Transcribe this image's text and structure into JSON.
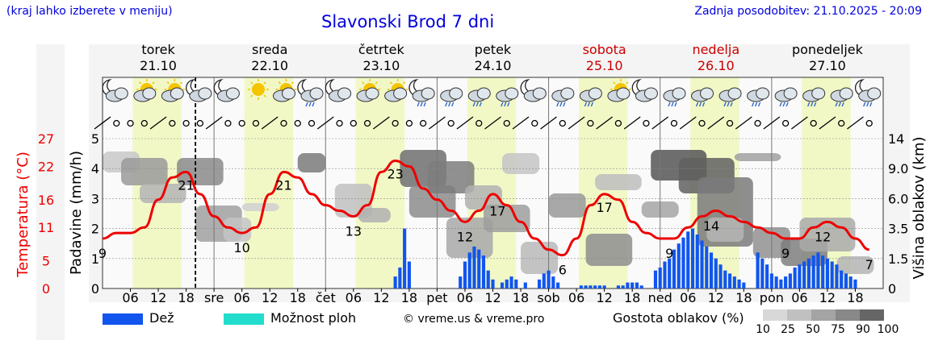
{
  "header": {
    "note": "(kraj lahko izberete v meniju)",
    "title": "Slavonski Brod 7 dni",
    "updated": "Zadnja posodobitev: 21.10.2025 - 20:09"
  },
  "days": [
    {
      "name": "torek",
      "date": "21.10",
      "weekend": false
    },
    {
      "name": "sreda",
      "date": "22.10",
      "weekend": false
    },
    {
      "name": "četrtek",
      "date": "23.10",
      "weekend": false
    },
    {
      "name": "petek",
      "date": "24.10",
      "weekend": false
    },
    {
      "name": "sobota",
      "date": "25.10",
      "weekend": true
    },
    {
      "name": "nedelja",
      "date": "26.10",
      "weekend": true
    },
    {
      "name": "ponedeljek",
      "date": "27.10",
      "weekend": false
    }
  ],
  "axes": {
    "left_temp_label": "Temperatura (°C)",
    "left_temp_ticks": [
      "27",
      "22",
      "16",
      "11",
      "5",
      "0"
    ],
    "left_precip_label": "Padavine (mm/h)",
    "left_precip_ticks": [
      "5",
      "4",
      "3",
      "2",
      "1",
      "0"
    ],
    "right_label": "Višina oblakov (km)",
    "right_ticks": [
      "14",
      "9.0",
      "6.0",
      "3.5",
      "1.5",
      "0"
    ],
    "x_ticks": [
      "06",
      "12",
      "18",
      "sre",
      "06",
      "12",
      "18",
      "čet",
      "06",
      "12",
      "18",
      "pet",
      "06",
      "12",
      "18",
      "sob",
      "06",
      "12",
      "18",
      "ned",
      "06",
      "12",
      "18",
      "pon",
      "06",
      "12",
      "18"
    ]
  },
  "legend": {
    "rain": "Dež",
    "rain_color": "#1155ee",
    "storm": "Možnost ploh",
    "storm_color": "#22ddcc",
    "credit": "© vreme.us & vreme.pro",
    "density_label": "Gostota oblakov (%)",
    "density_ticks": [
      "10",
      "25",
      "50",
      "75",
      "90",
      "100"
    ]
  },
  "chart_data": {
    "type": "line",
    "x_unit": "hours since 21.10 00:00",
    "series": [
      {
        "name": "Temperatura (°C)",
        "color": "#ee0000",
        "points": [
          [
            0,
            9
          ],
          [
            3,
            10
          ],
          [
            6,
            10
          ],
          [
            9,
            11
          ],
          [
            12,
            16
          ],
          [
            15,
            20
          ],
          [
            18,
            21
          ],
          [
            21,
            17
          ],
          [
            24,
            13
          ],
          [
            27,
            11
          ],
          [
            30,
            10
          ],
          [
            33,
            11
          ],
          [
            36,
            17
          ],
          [
            39,
            21
          ],
          [
            42,
            20
          ],
          [
            45,
            17
          ],
          [
            48,
            15
          ],
          [
            51,
            14
          ],
          [
            54,
            13
          ],
          [
            57,
            15
          ],
          [
            60,
            21
          ],
          [
            63,
            23
          ],
          [
            66,
            22
          ],
          [
            69,
            18
          ],
          [
            72,
            16
          ],
          [
            75,
            14
          ],
          [
            78,
            12
          ],
          [
            81,
            14
          ],
          [
            84,
            17
          ],
          [
            87,
            15
          ],
          [
            90,
            12
          ],
          [
            93,
            9
          ],
          [
            96,
            7
          ],
          [
            99,
            6
          ],
          [
            102,
            9
          ],
          [
            105,
            15
          ],
          [
            108,
            17
          ],
          [
            111,
            16
          ],
          [
            114,
            12
          ],
          [
            117,
            10
          ],
          [
            120,
            9
          ],
          [
            123,
            9
          ],
          [
            126,
            11
          ],
          [
            129,
            13
          ],
          [
            132,
            14
          ],
          [
            135,
            13
          ],
          [
            138,
            12
          ],
          [
            141,
            11
          ],
          [
            144,
            10
          ],
          [
            147,
            9
          ],
          [
            150,
            9
          ],
          [
            153,
            11
          ],
          [
            156,
            12
          ],
          [
            159,
            11
          ],
          [
            162,
            9
          ],
          [
            165,
            7
          ]
        ]
      },
      {
        "name": "Dež (mm/h)",
        "color": "#1155ee",
        "points": [
          [
            63,
            0.4
          ],
          [
            64,
            0.7
          ],
          [
            65,
            2.0
          ],
          [
            66,
            0.9
          ],
          [
            77,
            0.4
          ],
          [
            78,
            0.9
          ],
          [
            79,
            1.2
          ],
          [
            80,
            1.4
          ],
          [
            81,
            1.3
          ],
          [
            82,
            1.1
          ],
          [
            83,
            0.6
          ],
          [
            84,
            0.3
          ],
          [
            86,
            0.2
          ],
          [
            87,
            0.3
          ],
          [
            88,
            0.4
          ],
          [
            89,
            0.3
          ],
          [
            91,
            0.2
          ],
          [
            94,
            0.3
          ],
          [
            95,
            0.5
          ],
          [
            96,
            0.6
          ],
          [
            97,
            0.4
          ],
          [
            98,
            0.2
          ],
          [
            103,
            0.1
          ],
          [
            104,
            0.1
          ],
          [
            105,
            0.1
          ],
          [
            106,
            0.1
          ],
          [
            107,
            0.1
          ],
          [
            108,
            0.1
          ],
          [
            111,
            0.1
          ],
          [
            112,
            0.1
          ],
          [
            113,
            0.2
          ],
          [
            114,
            0.2
          ],
          [
            115,
            0.2
          ],
          [
            116,
            0.1
          ],
          [
            119,
            0.6
          ],
          [
            120,
            0.7
          ],
          [
            121,
            0.9
          ],
          [
            122,
            1.0
          ],
          [
            123,
            1.3
          ],
          [
            124,
            1.5
          ],
          [
            125,
            1.7
          ],
          [
            126,
            1.9
          ],
          [
            127,
            2.0
          ],
          [
            128,
            1.8
          ],
          [
            129,
            1.6
          ],
          [
            130,
            1.4
          ],
          [
            131,
            1.2
          ],
          [
            132,
            1.0
          ],
          [
            133,
            0.8
          ],
          [
            134,
            0.6
          ],
          [
            135,
            0.5
          ],
          [
            136,
            0.4
          ],
          [
            137,
            0.3
          ],
          [
            138,
            0.2
          ],
          [
            141,
            1.2
          ],
          [
            142,
            1.0
          ],
          [
            143,
            0.8
          ],
          [
            144,
            0.5
          ],
          [
            145,
            0.4
          ],
          [
            146,
            0.3
          ],
          [
            147,
            0.4
          ],
          [
            148,
            0.5
          ],
          [
            149,
            0.7
          ],
          [
            150,
            0.8
          ],
          [
            151,
            0.9
          ],
          [
            152,
            1.0
          ],
          [
            153,
            1.1
          ],
          [
            154,
            1.2
          ],
          [
            155,
            1.1
          ],
          [
            156,
            1.0
          ],
          [
            157,
            0.9
          ],
          [
            158,
            0.8
          ],
          [
            159,
            0.6
          ],
          [
            160,
            0.5
          ],
          [
            161,
            0.4
          ],
          [
            162,
            0.3
          ]
        ]
      }
    ],
    "temp_labels": [
      {
        "t": 0,
        "value": "9"
      },
      {
        "t": 18,
        "value": "21"
      },
      {
        "t": 30,
        "value": "10"
      },
      {
        "t": 39,
        "value": "21"
      },
      {
        "t": 54,
        "value": "13"
      },
      {
        "t": 63,
        "value": "23"
      },
      {
        "t": 78,
        "value": "12"
      },
      {
        "t": 85,
        "value": "17"
      },
      {
        "t": 99,
        "value": "6"
      },
      {
        "t": 108,
        "value": "17"
      },
      {
        "t": 122,
        "value": "9"
      },
      {
        "t": 131,
        "value": "14"
      },
      {
        "t": 147,
        "value": "9"
      },
      {
        "t": 155,
        "value": "12"
      },
      {
        "t": 165,
        "value": "7"
      }
    ],
    "temp_range": [
      0,
      27
    ],
    "precip_range": [
      0,
      5
    ],
    "now_hour": 20
  }
}
